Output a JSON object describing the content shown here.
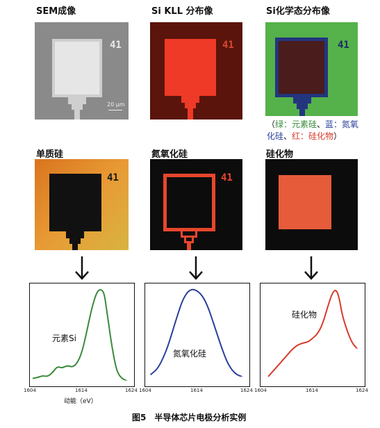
{
  "titles": {
    "sem": "SEM成像",
    "si_kll": "Si KLL 分布像",
    "si_chem": "Si化学态分布像",
    "elemental": "单质硅",
    "nitride": "氮氧化硅",
    "silicide": "硅化物"
  },
  "tile_label": "41",
  "scale_bar": "20 μm",
  "legend": {
    "open": "（",
    "green": "绿：元素硅",
    "sep1": "、",
    "blue": "蓝：氮氧化硅",
    "sep2": "、",
    "red": "红：硅化物",
    "close": "）"
  },
  "colors": {
    "green": "#3a8a3a",
    "blue": "#2a3f9a",
    "red": "#d83a2a"
  },
  "spectra": [
    {
      "label": "元素Si",
      "color": "#3a8a3a",
      "x": [
        1604,
        1605,
        1606,
        1607,
        1608,
        1609,
        1610,
        1611,
        1612,
        1613,
        1614,
        1615,
        1616,
        1617,
        1617.8,
        1618.5,
        1619,
        1620,
        1621,
        1622,
        1623
      ],
      "y": [
        0.04,
        0.05,
        0.07,
        0.06,
        0.1,
        0.17,
        0.15,
        0.18,
        0.16,
        0.2,
        0.32,
        0.55,
        0.8,
        0.97,
        1.0,
        0.96,
        0.78,
        0.4,
        0.12,
        0.04,
        0.02
      ]
    },
    {
      "label": "氮氧化硅",
      "color": "#2a3f9a",
      "x": [
        1604.5,
        1605,
        1606,
        1607,
        1608,
        1609,
        1610,
        1611,
        1612,
        1613,
        1614,
        1615,
        1616,
        1617,
        1618,
        1619,
        1620,
        1621,
        1622,
        1623
      ],
      "y": [
        0.08,
        0.1,
        0.15,
        0.25,
        0.38,
        0.55,
        0.72,
        0.88,
        0.97,
        1.0,
        0.98,
        0.93,
        0.83,
        0.68,
        0.52,
        0.36,
        0.22,
        0.13,
        0.08,
        0.06
      ]
    },
    {
      "label": "硅化物",
      "color": "#d83a2a",
      "x": [
        1605,
        1606,
        1607,
        1608,
        1609,
        1610,
        1611,
        1612,
        1613,
        1614,
        1615,
        1616,
        1617,
        1618,
        1618.8,
        1619.5,
        1620,
        1621,
        1622,
        1623
      ],
      "y": [
        0.06,
        0.12,
        0.18,
        0.24,
        0.3,
        0.36,
        0.4,
        0.42,
        0.43,
        0.47,
        0.52,
        0.62,
        0.8,
        0.96,
        1.0,
        0.88,
        0.72,
        0.55,
        0.42,
        0.36
      ]
    }
  ],
  "axis": {
    "ticks": [
      "1604",
      "1614",
      "1624"
    ],
    "xmin": 1604,
    "xmax": 1624,
    "xlabel": "动能（eV）"
  },
  "caption": "图5　半导体芯片电极分析实例"
}
